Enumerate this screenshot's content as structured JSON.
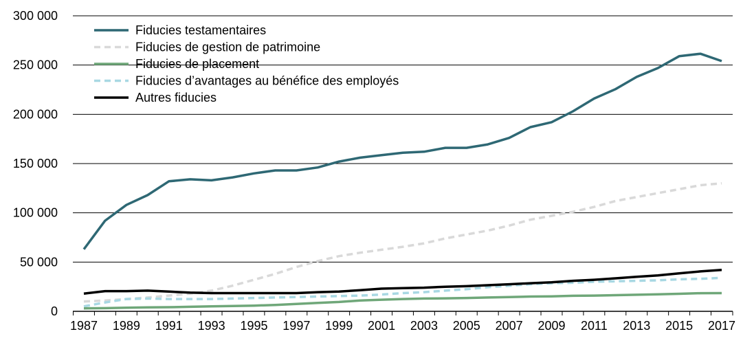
{
  "chart_data": {
    "type": "line",
    "title": "",
    "xlabel": "",
    "ylabel": "",
    "ylim": [
      0,
      300000
    ],
    "xlim": [
      1987,
      2017
    ],
    "grid": "horizontal",
    "legend_position": "top-left",
    "x": [
      1987,
      1988,
      1989,
      1990,
      1991,
      1992,
      1993,
      1994,
      1995,
      1996,
      1997,
      1998,
      1999,
      2000,
      2001,
      2002,
      2003,
      2004,
      2005,
      2006,
      2007,
      2008,
      2009,
      2010,
      2011,
      2012,
      2013,
      2014,
      2015,
      2016,
      2017
    ],
    "x_tick_labels": [
      "1987",
      "1989",
      "1991",
      "1993",
      "1995",
      "1997",
      "1999",
      "2001",
      "2003",
      "2005",
      "2007",
      "2009",
      "2011",
      "2013",
      "2015",
      "2017"
    ],
    "y_ticks": [
      0,
      50000,
      100000,
      150000,
      200000,
      250000,
      300000
    ],
    "y_tick_labels": [
      "0",
      "50 000",
      "100 000",
      "150 000",
      "200 000",
      "250 000",
      "300 000"
    ],
    "series": [
      {
        "name": "Fiducies testamentaires",
        "color": "#2E6874",
        "style": "solid",
        "values": [
          63000,
          92000,
          108000,
          118000,
          132000,
          134000,
          133000,
          136000,
          140000,
          143000,
          143000,
          146000,
          152000,
          156000,
          158500,
          161000,
          162000,
          166000,
          166000,
          169500,
          176000,
          187000,
          192000,
          203000,
          216000,
          225500,
          238000,
          247000,
          259000,
          261500,
          254000
        ]
      },
      {
        "name": "Fiducies de gestion de patrimoine",
        "color": "#D9D9D9",
        "style": "dashed",
        "values": [
          10000,
          11000,
          12500,
          14000,
          16000,
          18000,
          21000,
          26000,
          32000,
          38000,
          45000,
          51000,
          56000,
          59500,
          62500,
          65500,
          69000,
          74000,
          78000,
          82000,
          87000,
          93000,
          97000,
          101000,
          106000,
          112000,
          116000,
          120000,
          124000,
          128000,
          130000
        ]
      },
      {
        "name": "Fiducies de placement",
        "color": "#6FA779",
        "style": "solid",
        "values": [
          3000,
          3200,
          3600,
          4000,
          4200,
          4600,
          5000,
          5400,
          5800,
          6500,
          7500,
          8500,
          9500,
          11000,
          11800,
          12500,
          13000,
          13200,
          13500,
          14000,
          14500,
          15000,
          15200,
          15800,
          16000,
          16400,
          16800,
          17200,
          17800,
          18400,
          18500
        ]
      },
      {
        "name": "Fiducies d’avantages au bénéfice des employés",
        "color": "#A8D8E3",
        "style": "dashed",
        "values": [
          5000,
          9000,
          12500,
          13000,
          12500,
          12500,
          12500,
          13000,
          13500,
          14000,
          14500,
          15000,
          15500,
          16000,
          17000,
          18500,
          19500,
          21000,
          22500,
          24500,
          26000,
          27500,
          28500,
          29000,
          30000,
          30500,
          31000,
          31500,
          32500,
          33000,
          34000
        ]
      },
      {
        "name": "Autres fiducies",
        "color": "#000000",
        "style": "solid",
        "values": [
          18000,
          20500,
          20500,
          21000,
          20000,
          19000,
          18500,
          18500,
          18500,
          18500,
          18500,
          19500,
          20000,
          21500,
          23000,
          23500,
          24000,
          25000,
          25500,
          26500,
          27500,
          28500,
          29500,
          31000,
          32000,
          33500,
          35000,
          36500,
          38500,
          40500,
          42000
        ]
      }
    ]
  }
}
